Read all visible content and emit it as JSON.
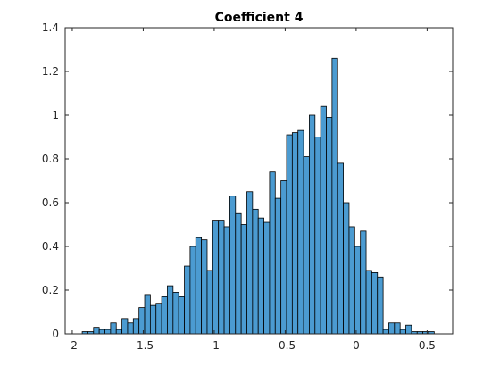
{
  "chart_data": {
    "type": "bar",
    "title": "Coefficient 4",
    "xlabel": "",
    "ylabel": "",
    "xlim": [
      -2.05,
      0.68
    ],
    "ylim": [
      0,
      1.4
    ],
    "x_ticks": [
      -2,
      -1.5,
      -1,
      -0.5,
      0,
      0.5
    ],
    "x_tick_labels": [
      "-2",
      "-1.5",
      "-1",
      "-0.5",
      "0",
      "0.5"
    ],
    "y_ticks": [
      0,
      0.2,
      0.4,
      0.6,
      0.8,
      1,
      1.2,
      1.4
    ],
    "y_tick_labels": [
      "0",
      "0.2",
      "0.4",
      "0.6",
      "0.8",
      "1",
      "1.2",
      "1.4"
    ],
    "grid": false,
    "bar_color": "#4b9bd1",
    "edge_color": "#000000",
    "bin_width": 0.04,
    "bin_centers": [
      -1.91,
      -1.87,
      -1.83,
      -1.79,
      -1.75,
      -1.71,
      -1.67,
      -1.63,
      -1.59,
      -1.55,
      -1.51,
      -1.47,
      -1.43,
      -1.39,
      -1.35,
      -1.31,
      -1.27,
      -1.23,
      -1.19,
      -1.15,
      -1.11,
      -1.07,
      -1.03,
      -0.99,
      -0.95,
      -0.91,
      -0.87,
      -0.83,
      -0.79,
      -0.75,
      -0.71,
      -0.67,
      -0.63,
      -0.59,
      -0.55,
      -0.51,
      -0.47,
      -0.43,
      -0.39,
      -0.35,
      -0.31,
      -0.27,
      -0.23,
      -0.19,
      -0.15,
      -0.11,
      -0.07,
      -0.03,
      0.01,
      0.05,
      0.09,
      0.13,
      0.17,
      0.21,
      0.25,
      0.29,
      0.33,
      0.37,
      0.41,
      0.45,
      0.49,
      0.53
    ],
    "values": [
      0.01,
      0.01,
      0.03,
      0.02,
      0.02,
      0.05,
      0.02,
      0.07,
      0.05,
      0.07,
      0.12,
      0.18,
      0.13,
      0.14,
      0.17,
      0.22,
      0.19,
      0.17,
      0.31,
      0.4,
      0.44,
      0.43,
      0.29,
      0.52,
      0.52,
      0.49,
      0.63,
      0.55,
      0.5,
      0.65,
      0.57,
      0.53,
      0.51,
      0.74,
      0.62,
      0.7,
      0.91,
      0.92,
      0.93,
      0.81,
      1.0,
      0.9,
      1.04,
      0.99,
      1.26,
      0.78,
      0.6,
      0.49,
      0.4,
      0.47,
      0.29,
      0.28,
      0.26,
      0.02,
      0.05,
      0.05,
      0.02,
      0.04,
      0.01,
      0.01,
      0.01,
      0.01
    ]
  }
}
